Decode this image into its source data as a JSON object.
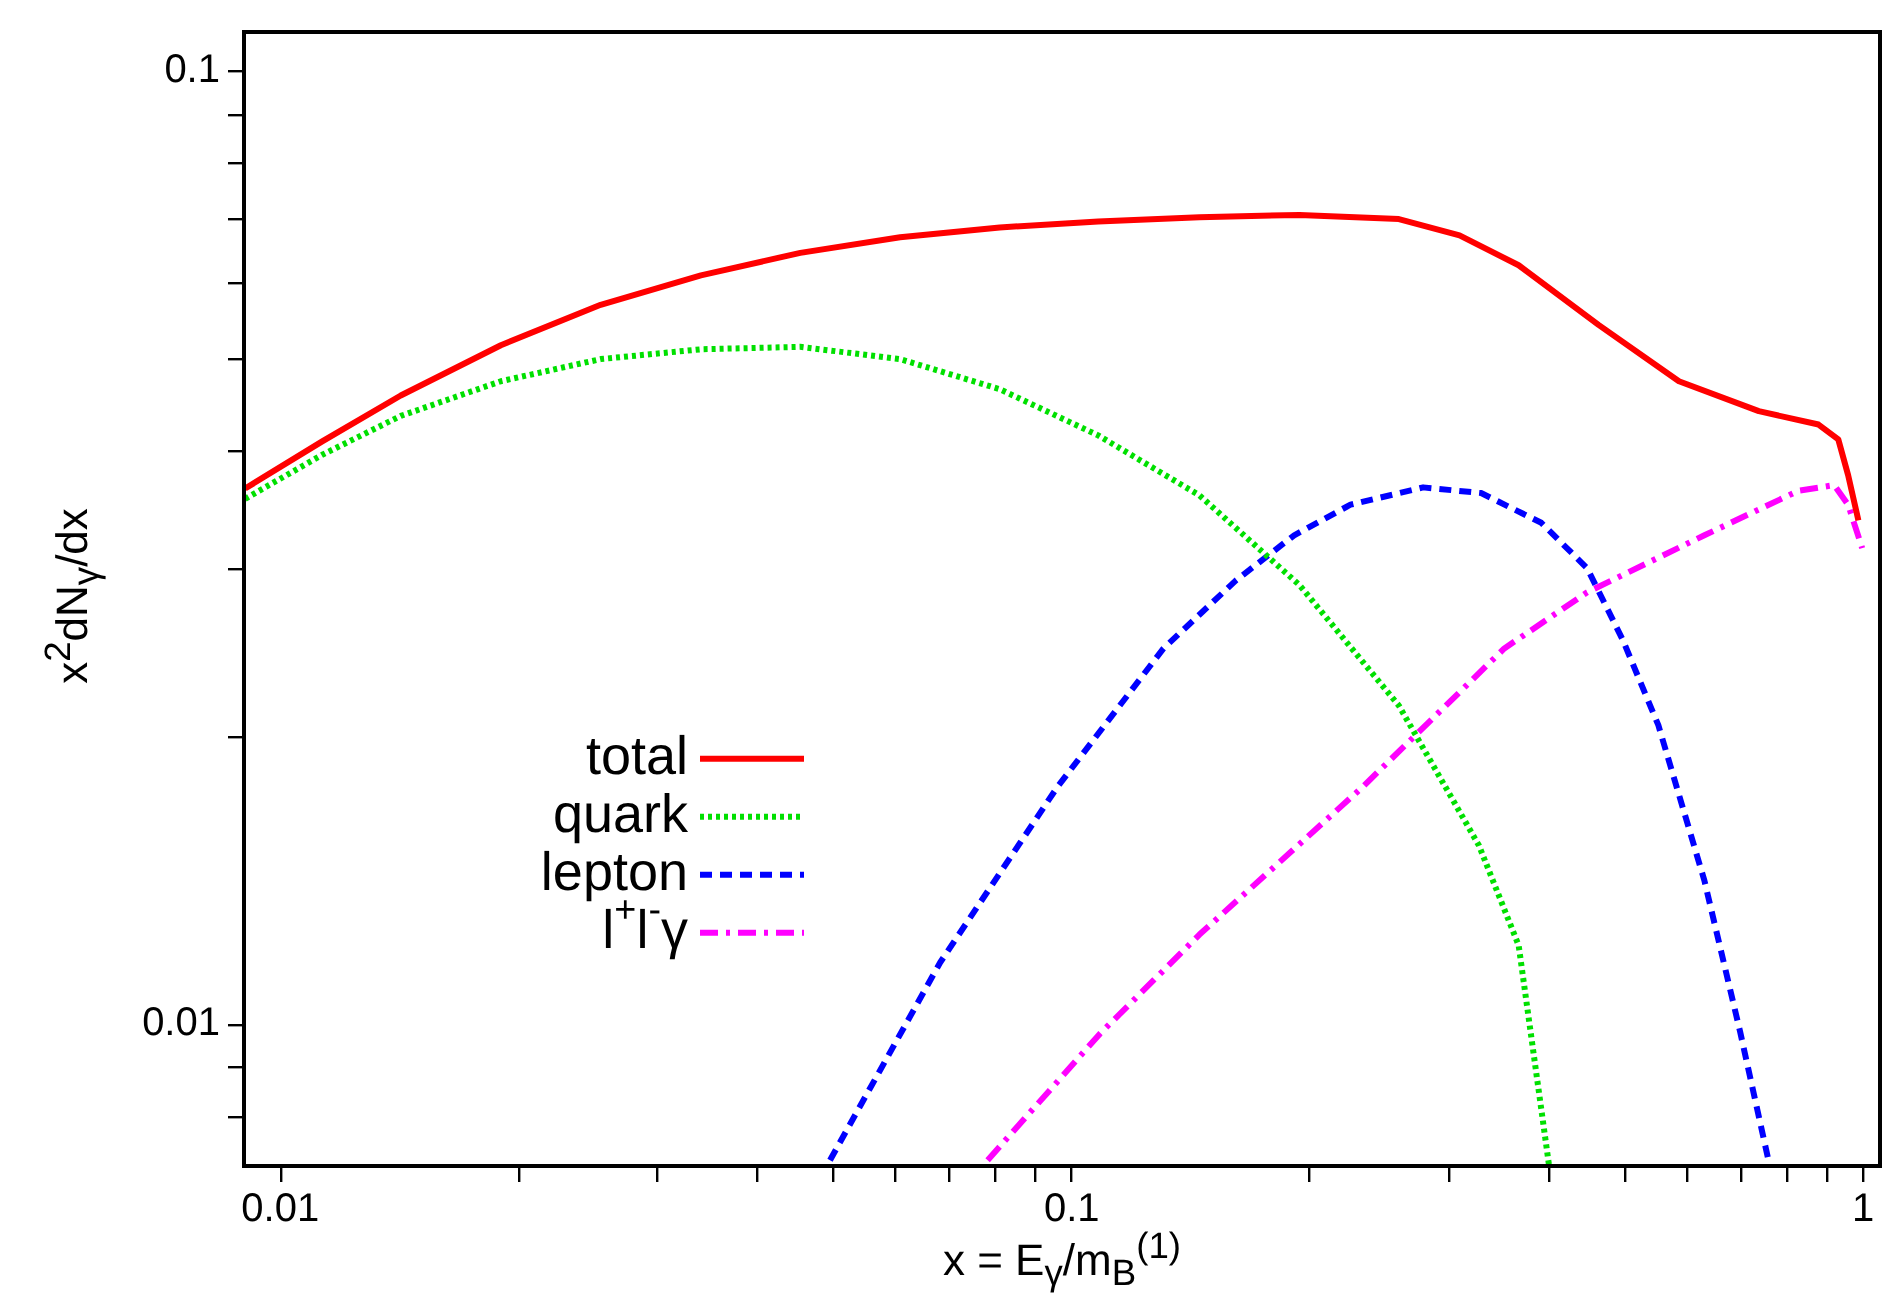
{
  "chart_data": {
    "type": "line",
    "xlabel": "x = E$_{γ}$/m$_{B}$$^{(1)}$",
    "ylabel": "x$^{2}$dN$_{γ}$/dx",
    "log": "xy",
    "grid": false,
    "legend": "left",
    "marker": "none",
    "xlim": [
      0.009,
      1.05
    ],
    "ylim": [
      0.0071,
      0.11
    ],
    "xticks": [
      0.01,
      {
        "value": 0.02,
        "label": null
      },
      {
        "value": 0.03,
        "label": null
      },
      {
        "value": 0.04,
        "label": null
      },
      {
        "value": 0.05,
        "label": null
      },
      {
        "value": 0.06,
        "label": null
      },
      {
        "value": 0.07,
        "label": null
      },
      {
        "value": 0.08,
        "label": null
      },
      {
        "value": 0.09,
        "label": null
      },
      0.1,
      {
        "value": 0.2,
        "label": null
      },
      {
        "value": 0.3,
        "label": null
      },
      {
        "value": 0.4,
        "label": null
      },
      {
        "value": 0.5,
        "label": null
      },
      {
        "value": 0.6,
        "label": null
      },
      {
        "value": 0.7,
        "label": null
      },
      {
        "value": 0.8,
        "label": null
      },
      {
        "value": 0.9,
        "label": null
      },
      1
    ],
    "yticks": [
      {
        "value": 0.008,
        "label": null
      },
      {
        "value": 0.009,
        "label": null
      },
      0.01,
      {
        "value": 0.02,
        "label": null
      },
      {
        "value": 0.03,
        "label": null
      },
      {
        "value": 0.04,
        "label": null
      },
      {
        "value": 0.05,
        "label": null
      },
      {
        "value": 0.06,
        "label": null
      },
      {
        "value": 0.07,
        "label": null
      },
      {
        "value": 0.08,
        "label": null
      },
      {
        "value": 0.09,
        "label": null
      },
      0.1
    ],
    "series": [
      {
        "name": "total",
        "color": "#ff0000",
        "line_style": "solid",
        "x": [
          0.00903,
          0.0113,
          0.0142,
          0.019,
          0.0254,
          0.034,
          0.0454,
          0.0607,
          0.0811,
          0.108,
          0.145,
          0.194,
          0.259,
          0.309,
          0.367,
          0.463,
          0.585,
          0.738,
          0.878,
          0.93,
          0.957,
          0.986
        ],
        "values": [
          0.0365,
          0.0409,
          0.0457,
          0.0516,
          0.0569,
          0.0611,
          0.0645,
          0.067,
          0.0686,
          0.0696,
          0.0703,
          0.0707,
          0.07,
          0.0673,
          0.0626,
          0.0542,
          0.0473,
          0.044,
          0.0426,
          0.0411,
          0.0377,
          0.0338
        ]
      },
      {
        "name": "quark",
        "color": "#00e000",
        "line_style": "dotted",
        "x": [
          0.00903,
          0.0113,
          0.0142,
          0.019,
          0.0254,
          0.034,
          0.0454,
          0.0607,
          0.0811,
          0.108,
          0.145,
          0.194,
          0.259,
          0.327,
          0.367,
          0.401
        ],
        "values": [
          0.0356,
          0.0396,
          0.0435,
          0.0473,
          0.0499,
          0.0511,
          0.0514,
          0.0499,
          0.0464,
          0.0415,
          0.0359,
          0.0289,
          0.0216,
          0.0154,
          0.0121,
          0.0071
        ]
      },
      {
        "name": "lepton",
        "color": "#0000ff",
        "line_style": "dashed",
        "x": [
          0.0495,
          0.0682,
          0.0959,
          0.1306,
          0.161,
          0.191,
          0.225,
          0.278,
          0.329,
          0.392,
          0.448,
          0.497,
          0.551,
          0.63,
          0.699,
          0.759
        ],
        "values": [
          0.0072,
          0.01161,
          0.01774,
          0.0248,
          0.0292,
          0.0326,
          0.0351,
          0.0366,
          0.0361,
          0.0336,
          0.0301,
          0.0253,
          0.0206,
          0.01415,
          0.00982,
          0.0072
        ]
      },
      {
        "name": "l$^{+}$l$^{-}$γ",
        "color": "#ff00ff",
        "line_style": "dashdot",
        "x": [
          0.0783,
          0.1085,
          0.145,
          0.233,
          0.352,
          0.448,
          0.63,
          0.828,
          0.919,
          0.957,
          0.997
        ],
        "values": [
          0.0072,
          0.00977,
          0.01242,
          0.01774,
          0.0248,
          0.0284,
          0.0326,
          0.0363,
          0.0368,
          0.0351,
          0.0316
        ]
      }
    ]
  }
}
